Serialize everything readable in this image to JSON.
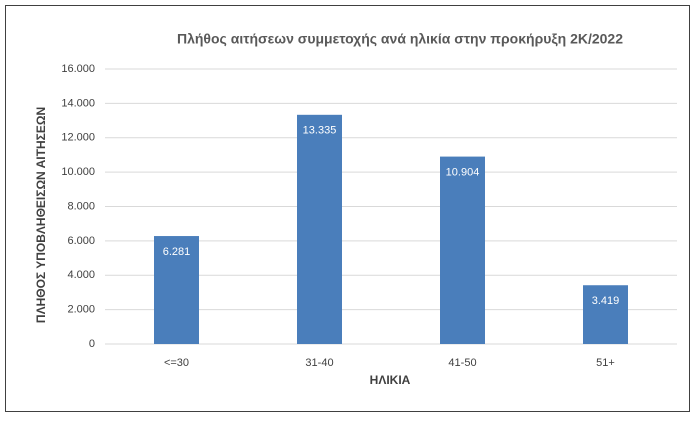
{
  "chart_data": {
    "type": "bar",
    "title": "Πλήθος αιτήσεων συμμετοχής ανά ηλικία στην προκήρυξη 2Κ/2022",
    "x_label": "ΗΛΙΚΙΑ",
    "y_label": "ΠΛΗΘΟΣ ΥΠΟΒΛΗΘΕΙΣΩΝ ΑΙΤΗΣΕΩΝ",
    "categories": [
      "<=30",
      "31-40",
      "41-50",
      "51+"
    ],
    "values": [
      6281,
      13335,
      10904,
      3419
    ],
    "value_labels": [
      "6.281",
      "13.335",
      "10.904",
      "3.419"
    ],
    "color": "#4a7ebb",
    "ylim": [
      0,
      16000
    ],
    "yticks": [
      0,
      {
        "value": 2000,
        "label": "2.000"
      },
      {
        "value": 4000,
        "label": "4.000"
      },
      {
        "value": 6000,
        "label": "6.000"
      },
      {
        "value": 8000,
        "label": "8.000"
      },
      {
        "value": 10000,
        "label": "10.000"
      },
      {
        "value": 12000,
        "label": "12.000"
      },
      {
        "value": 14000,
        "label": "14.000"
      },
      {
        "value": 16000,
        "label": "16.000"
      }
    ],
    "grid": true
  }
}
